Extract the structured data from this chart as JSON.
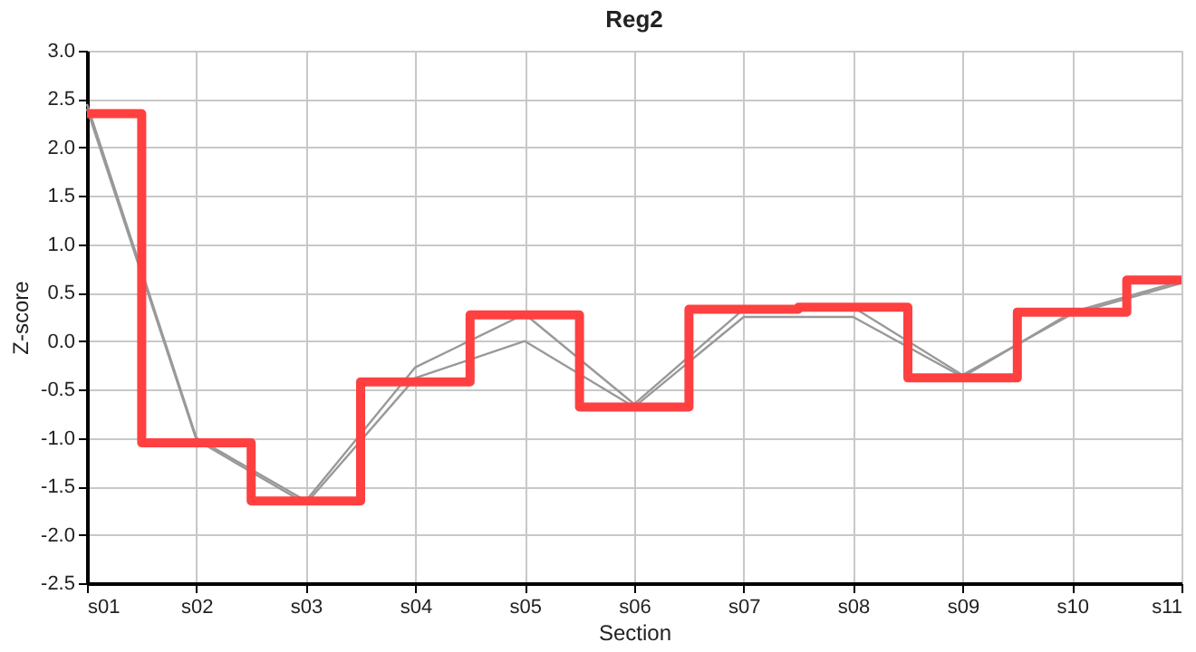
{
  "chart_data": {
    "type": "line",
    "title": "Reg2",
    "xlabel": "Section",
    "ylabel": "Z-score",
    "categories": [
      "s01",
      "s02",
      "s03",
      "s04",
      "s05",
      "s06",
      "s07",
      "s08",
      "s09",
      "s10",
      "s11"
    ],
    "series": [
      {
        "color": "#999999",
        "values": [
          2.45,
          -1.0,
          -1.65,
          -0.27,
          0.28,
          -0.65,
          0.33,
          0.35,
          -0.35,
          0.28,
          0.6
        ]
      },
      {
        "color": "#999999",
        "values": [
          2.4,
          -1.02,
          -1.68,
          -0.38,
          0.0,
          -0.68,
          0.25,
          0.25,
          -0.37,
          0.3,
          0.62
        ]
      },
      {
        "type": "step",
        "color": "#ff4040",
        "values": [
          2.35,
          -1.05,
          -1.65,
          -0.42,
          0.27,
          -0.68,
          0.33,
          0.35,
          -0.38,
          0.3,
          0.63
        ]
      }
    ],
    "ylim": [
      -2.5,
      3.0
    ],
    "yticks": [
      {
        "value": -2.5,
        "label": "-2.5"
      },
      {
        "value": -2.0,
        "label": "-2.0"
      },
      {
        "value": -1.5,
        "label": "-1.5"
      },
      {
        "value": -1.0,
        "label": "-1.0"
      },
      {
        "value": -0.5,
        "label": "-0.5"
      },
      {
        "value": 0.0,
        "label": "0.0"
      },
      {
        "value": 0.5,
        "label": "0.5"
      },
      {
        "value": 1.0,
        "label": "1.0"
      },
      {
        "value": 1.5,
        "label": "1.5"
      },
      {
        "value": 2.0,
        "label": "2.0"
      },
      {
        "value": 2.5,
        "label": "2.5"
      },
      {
        "value": 3.0,
        "label": "3.0"
      }
    ],
    "grid": true,
    "marker": "none",
    "line_style": "solid"
  }
}
